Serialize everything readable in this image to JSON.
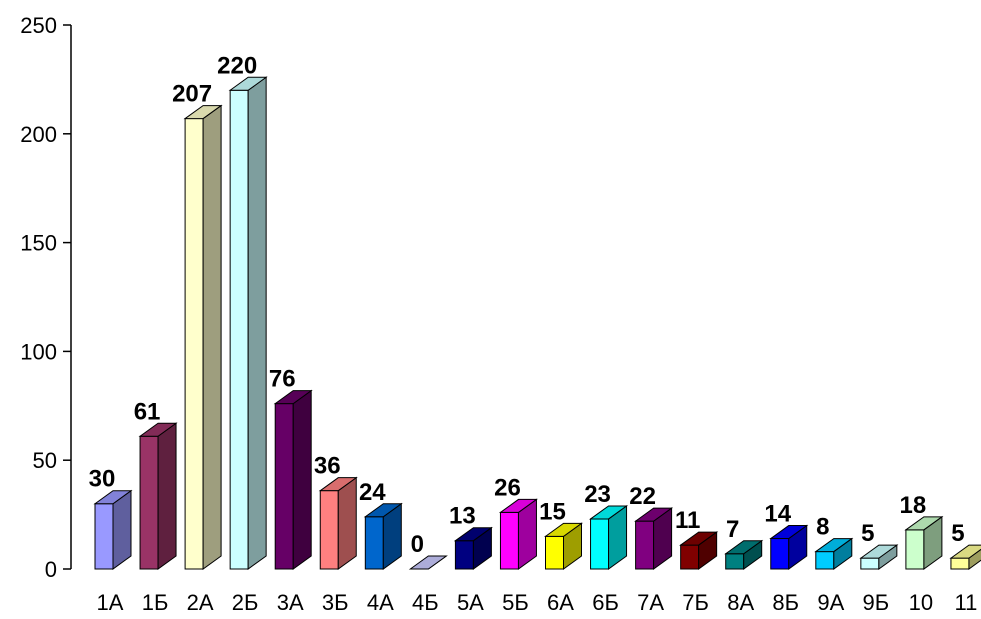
{
  "chart_data": {
    "type": "bar",
    "style": "3d-column",
    "categories": [
      "1А",
      "1Б",
      "2А",
      "2Б",
      "3А",
      "3Б",
      "4А",
      "4Б",
      "5А",
      "5Б",
      "6А",
      "6Б",
      "7А",
      "7Б",
      "8А",
      "8Б",
      "9А",
      "9Б",
      "10",
      "11"
    ],
    "values": [
      30,
      61,
      207,
      220,
      76,
      36,
      24,
      0,
      13,
      26,
      15,
      23,
      22,
      11,
      7,
      14,
      8,
      5,
      18,
      5
    ],
    "value_labels": [
      "30",
      "61",
      "207",
      "220",
      "76",
      "36",
      "24",
      "0",
      "13",
      "26",
      "15",
      "23",
      "22",
      "11",
      "7",
      "14",
      "8",
      "5",
      "18",
      "5"
    ],
    "y_ticks": [
      "0",
      "50",
      "100",
      "150",
      "200",
      "250"
    ],
    "ylim": [
      0,
      250
    ],
    "grid": false,
    "legend": "none",
    "colors": [
      "#9999ff",
      "#993366",
      "#ffffcc",
      "#ccffff",
      "#660066",
      "#ff8080",
      "#0066cc",
      "#ccccff",
      "#000080",
      "#ff00ff",
      "#ffff00",
      "#00ffff",
      "#800080",
      "#800000",
      "#008080",
      "#0000ff",
      "#00ccff",
      "#ccffff",
      "#ccffcc",
      "#ffff99"
    ]
  }
}
